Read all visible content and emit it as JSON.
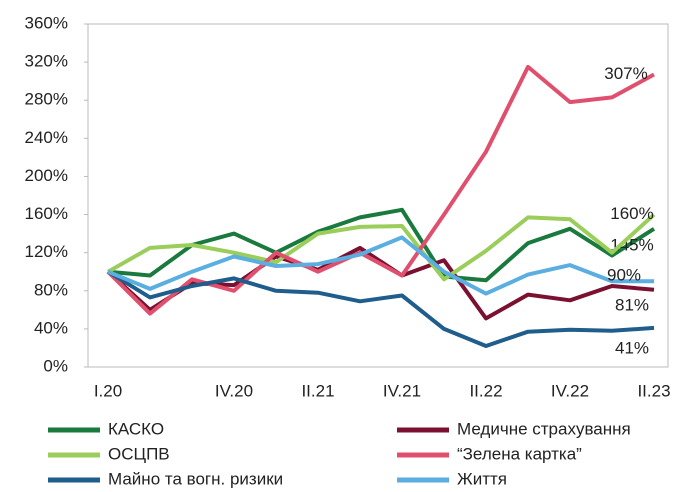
{
  "chart_data": {
    "type": "line",
    "categories": [
      "I.20",
      null,
      null,
      "IV.20",
      null,
      "II.21",
      null,
      "IV.21",
      null,
      "II.22",
      null,
      "IV.22",
      null,
      "II.23"
    ],
    "ylim": [
      0,
      360
    ],
    "yticks": [
      {
        "value": 0,
        "label": "0%"
      },
      {
        "value": 40,
        "label": "40%"
      },
      {
        "value": 80,
        "label": "80%"
      },
      {
        "value": 120,
        "label": "120%"
      },
      {
        "value": 160,
        "label": "160%"
      },
      {
        "value": 200,
        "label": "200%"
      },
      {
        "value": 240,
        "label": "240%"
      },
      {
        "value": 280,
        "label": "280%"
      },
      {
        "value": 320,
        "label": "320%"
      },
      {
        "value": 360,
        "label": "360%"
      }
    ],
    "grid": false,
    "series": [
      {
        "name": "КАСКО",
        "color": "#1a7a3e",
        "values": [
          100,
          96,
          128,
          140,
          120,
          142,
          157,
          165,
          95,
          91,
          130,
          145,
          117,
          145
        ],
        "value_labels": [
          null,
          null,
          null,
          null,
          null,
          null,
          null,
          null,
          null,
          null,
          null,
          null,
          null,
          "145%"
        ]
      },
      {
        "name": "Медичне страхування",
        "color": "#7b1030",
        "values": [
          100,
          60,
          88,
          86,
          116,
          102,
          125,
          96,
          112,
          51,
          76,
          70,
          85,
          81
        ],
        "value_labels": [
          null,
          null,
          null,
          null,
          null,
          null,
          null,
          null,
          null,
          null,
          null,
          null,
          null,
          "81%"
        ]
      },
      {
        "name": "ОСЦПВ",
        "color": "#9acd5a",
        "values": [
          100,
          125,
          128,
          120,
          110,
          140,
          147,
          148,
          92,
          122,
          157,
          155,
          120,
          160
        ],
        "value_labels": [
          null,
          null,
          null,
          null,
          null,
          null,
          null,
          null,
          null,
          null,
          null,
          null,
          null,
          "160%"
        ]
      },
      {
        "name": "“Зелена картка”",
        "color": "#e0506e",
        "values": [
          100,
          56,
          92,
          80,
          120,
          100,
          120,
          96,
          160,
          226,
          315,
          278,
          283,
          307
        ],
        "value_labels": [
          null,
          null,
          null,
          null,
          null,
          null,
          null,
          null,
          null,
          null,
          null,
          null,
          null,
          "307%"
        ]
      },
      {
        "name": "Майно та вогн. ризики",
        "color": "#1f5e8c",
        "values": [
          100,
          73,
          85,
          93,
          80,
          78,
          69,
          75,
          40,
          22,
          37,
          39,
          38,
          41
        ],
        "value_labels": [
          null,
          null,
          null,
          null,
          null,
          null,
          null,
          null,
          null,
          null,
          null,
          null,
          null,
          "41%"
        ]
      },
      {
        "name": "Життя",
        "color": "#5aaee0",
        "values": [
          100,
          82,
          100,
          116,
          106,
          108,
          118,
          136,
          100,
          77,
          97,
          107,
          90,
          90
        ],
        "value_labels": [
          null,
          null,
          null,
          null,
          null,
          null,
          null,
          null,
          null,
          null,
          null,
          null,
          null,
          "90%"
        ]
      }
    ]
  }
}
